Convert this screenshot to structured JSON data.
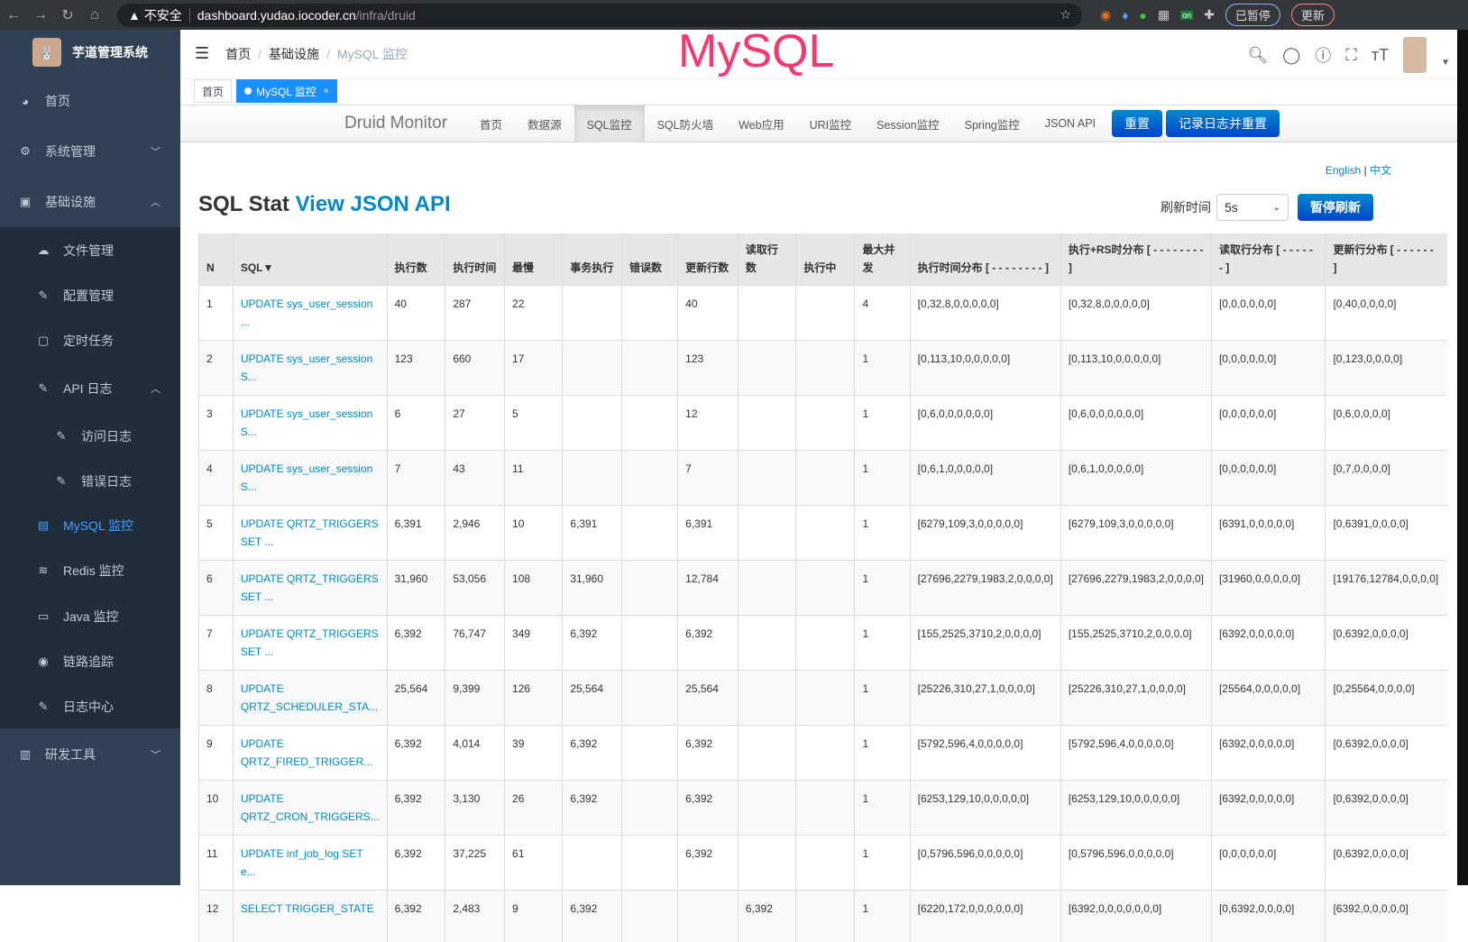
{
  "browser": {
    "security": "不安全",
    "url_host": "dashboard.yudao.iocoder.cn",
    "url_path": "/infra/druid",
    "paused": "已暂停",
    "update": "更新",
    "ext_on": "on"
  },
  "overlay_title": "MySQL",
  "sidebar": {
    "title": "芋道管理系统",
    "items": [
      {
        "label": "首页",
        "icon": "dashboard-icon",
        "level": 0
      },
      {
        "label": "系统管理",
        "icon": "gear-icon",
        "level": 0,
        "arrow": "down"
      },
      {
        "label": "基础设施",
        "icon": "monitor-icon",
        "level": 0,
        "arrow": "up"
      },
      {
        "label": "文件管理",
        "icon": "upload-icon",
        "level": 1
      },
      {
        "label": "配置管理",
        "icon": "edit-icon",
        "level": 1
      },
      {
        "label": "定时任务",
        "icon": "job-icon",
        "level": 1
      },
      {
        "label": "API 日志",
        "icon": "log-icon",
        "level": 1,
        "arrow": "up"
      },
      {
        "label": "访问日志",
        "icon": "log-icon",
        "level": 2
      },
      {
        "label": "错误日志",
        "icon": "log-icon",
        "level": 2
      },
      {
        "label": "MySQL 监控",
        "icon": "database-icon",
        "level": 1,
        "active": true
      },
      {
        "label": "Redis 监控",
        "icon": "redis-icon",
        "level": 1
      },
      {
        "label": "Java 监控",
        "icon": "server-icon",
        "level": 1
      },
      {
        "label": "链路追踪",
        "icon": "eye-icon",
        "level": 1
      },
      {
        "label": "日志中心",
        "icon": "log-icon",
        "level": 1
      },
      {
        "label": "研发工具",
        "icon": "toolbox-icon",
        "level": 0,
        "arrow": "down"
      }
    ]
  },
  "breadcrumb": [
    "首页",
    "基础设施",
    "MySQL 监控"
  ],
  "tags": [
    {
      "label": "首页"
    },
    {
      "label": "MySQL 监控",
      "active": true
    }
  ],
  "druid": {
    "brand": "Druid Monitor",
    "nav": [
      "首页",
      "数据源",
      "SQL监控",
      "SQL防火墙",
      "Web应用",
      "URI监控",
      "Session监控",
      "Spring监控",
      "JSON API"
    ],
    "active": "SQL监控",
    "reset": "重置",
    "log_reset": "记录日志并重置"
  },
  "lang": {
    "en": "English",
    "sep": "|",
    "zh": "中文"
  },
  "heading": {
    "text": "SQL Stat",
    "link": "View JSON API"
  },
  "refresh": {
    "label": "刷新时间",
    "value": "5s",
    "pause": "暂停刷新"
  },
  "table": {
    "headers": [
      "N",
      "SQL▼",
      "执行数",
      "执行时间",
      "最慢",
      "事务执行",
      "错误数",
      "更新行数",
      "读取行数",
      "执行中",
      "最大并发",
      "执行时间分布 [ - - - - - - - - ]",
      "执行+RS时分布 [ - - - - - - - - ]",
      "读取行分布 [ - - - - - - ]",
      "更新行分布 [ - - - - - - ]"
    ],
    "rows": [
      [
        "1",
        "UPDATE sys_user_session ...",
        "40",
        "287",
        "22",
        "",
        "",
        "40",
        "",
        "",
        "4",
        "[0,32,8,0,0,0,0,0]",
        "[0,32,8,0,0,0,0,0]",
        "[0,0,0,0,0,0]",
        "[0,40,0,0,0,0]"
      ],
      [
        "2",
        "UPDATE sys_user_session S...",
        "123",
        "660",
        "17",
        "",
        "",
        "123",
        "",
        "",
        "1",
        "[0,113,10,0,0,0,0,0]",
        "[0,113,10,0,0,0,0,0]",
        "[0,0,0,0,0,0]",
        "[0,123,0,0,0,0]"
      ],
      [
        "3",
        "UPDATE sys_user_session S...",
        "6",
        "27",
        "5",
        "",
        "",
        "12",
        "",
        "",
        "1",
        "[0,6,0,0,0,0,0,0]",
        "[0,6,0,0,0,0,0,0]",
        "[0,0,0,0,0,0]",
        "[0,6,0,0,0,0]"
      ],
      [
        "4",
        "UPDATE sys_user_session S...",
        "7",
        "43",
        "11",
        "",
        "",
        "7",
        "",
        "",
        "1",
        "[0,6,1,0,0,0,0,0]",
        "[0,6,1,0,0,0,0,0]",
        "[0,0,0,0,0,0]",
        "[0,7,0,0,0,0]"
      ],
      [
        "5",
        "UPDATE QRTZ_TRIGGERS SET ...",
        "6,391",
        "2,946",
        "10",
        "6,391",
        "",
        "6,391",
        "",
        "",
        "1",
        "[6279,109,3,0,0,0,0,0]",
        "[6279,109,3,0,0,0,0,0]",
        "[6391,0,0,0,0,0]",
        "[0,6391,0,0,0,0]"
      ],
      [
        "6",
        "UPDATE QRTZ_TRIGGERS SET ...",
        "31,960",
        "53,056",
        "108",
        "31,960",
        "",
        "12,784",
        "",
        "",
        "1",
        "[27696,2279,1983,2,0,0,0,0]",
        "[27696,2279,1983,2,0,0,0,0]",
        "[31960,0,0,0,0,0]",
        "[19176,12784,0,0,0,0]"
      ],
      [
        "7",
        "UPDATE QRTZ_TRIGGERS SET ...",
        "6,392",
        "76,747",
        "349",
        "6,392",
        "",
        "6,392",
        "",
        "",
        "1",
        "[155,2525,3710,2,0,0,0,0]",
        "[155,2525,3710,2,0,0,0,0]",
        "[6392,0,0,0,0,0]",
        "[0,6392,0,0,0,0]"
      ],
      [
        "8",
        "UPDATE QRTZ_SCHEDULER_STA...",
        "25,564",
        "9,399",
        "126",
        "25,564",
        "",
        "25,564",
        "",
        "",
        "1",
        "[25226,310,27,1,0,0,0,0]",
        "[25226,310,27,1,0,0,0,0]",
        "[25564,0,0,0,0,0]",
        "[0,25564,0,0,0,0]"
      ],
      [
        "9",
        "UPDATE QRTZ_FIRED_TRIGGER...",
        "6,392",
        "4,014",
        "39",
        "6,392",
        "",
        "6,392",
        "",
        "",
        "1",
        "[5792,596,4,0,0,0,0,0]",
        "[5792,596,4,0,0,0,0,0]",
        "[6392,0,0,0,0,0]",
        "[0,6392,0,0,0,0]"
      ],
      [
        "10",
        "UPDATE QRTZ_CRON_TRIGGERS...",
        "6,392",
        "3,130",
        "26",
        "6,392",
        "",
        "6,392",
        "",
        "",
        "1",
        "[6253,129,10,0,0,0,0,0]",
        "[6253,129,10,0,0,0,0,0]",
        "[6392,0,0,0,0,0]",
        "[0,6392,0,0,0,0]"
      ],
      [
        "11",
        "UPDATE inf_job_log SET e...",
        "6,392",
        "37,225",
        "61",
        "",
        "",
        "6,392",
        "",
        "",
        "1",
        "[0,5796,596,0,0,0,0,0]",
        "[0,5796,596,0,0,0,0,0]",
        "[0,0,0,0,0,0]",
        "[0,6392,0,0,0,0]"
      ],
      [
        "12",
        "SELECT TRIGGER_STATE",
        "6,392",
        "2,483",
        "9",
        "6,392",
        "",
        "",
        "6,392",
        "",
        "1",
        "[6220,172,0,0,0,0,0,0]",
        "[6392,0,0,0,0,0,0,0]",
        "[0,6392,0,0,0,0]",
        "[6392,0,0,0,0,0]"
      ]
    ]
  }
}
